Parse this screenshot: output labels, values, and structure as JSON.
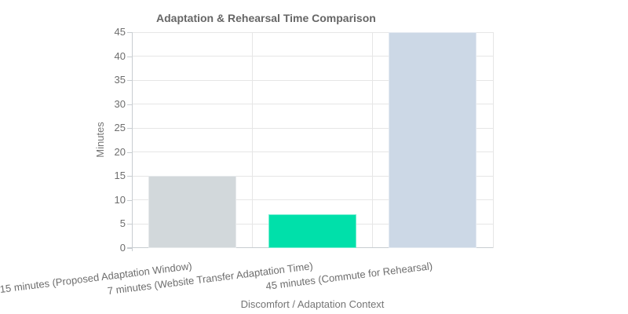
{
  "chart_data": {
    "type": "bar",
    "title": "Adaptation & Rehearsal Time Comparison",
    "categories": [
      "15 minutes (Proposed Adaptation Window)",
      "7 minutes (Website Transfer Adaptation Time)",
      "45 minutes (Commute for Rehearsal)"
    ],
    "values": [
      15,
      7,
      45
    ],
    "series_colors": [
      "#d2d8db",
      "#00e0aa",
      "#ccd8e6"
    ],
    "xlabel": "Discomfort / Adaptation Context",
    "ylabel": "Minutes",
    "ylim": [
      0,
      45
    ],
    "ytick_step": 5,
    "yticks": [
      0,
      5,
      10,
      15,
      20,
      25,
      30,
      35,
      40,
      45
    ],
    "grid": true,
    "legend_position": "none",
    "colors": {
      "title_text": "#666666",
      "axis_title_text": "#757575",
      "tick_text": "#6e6e6e",
      "gridline": "#e6e6e6",
      "axis_line": "#c8cdd1",
      "background": "#ffffff"
    }
  }
}
